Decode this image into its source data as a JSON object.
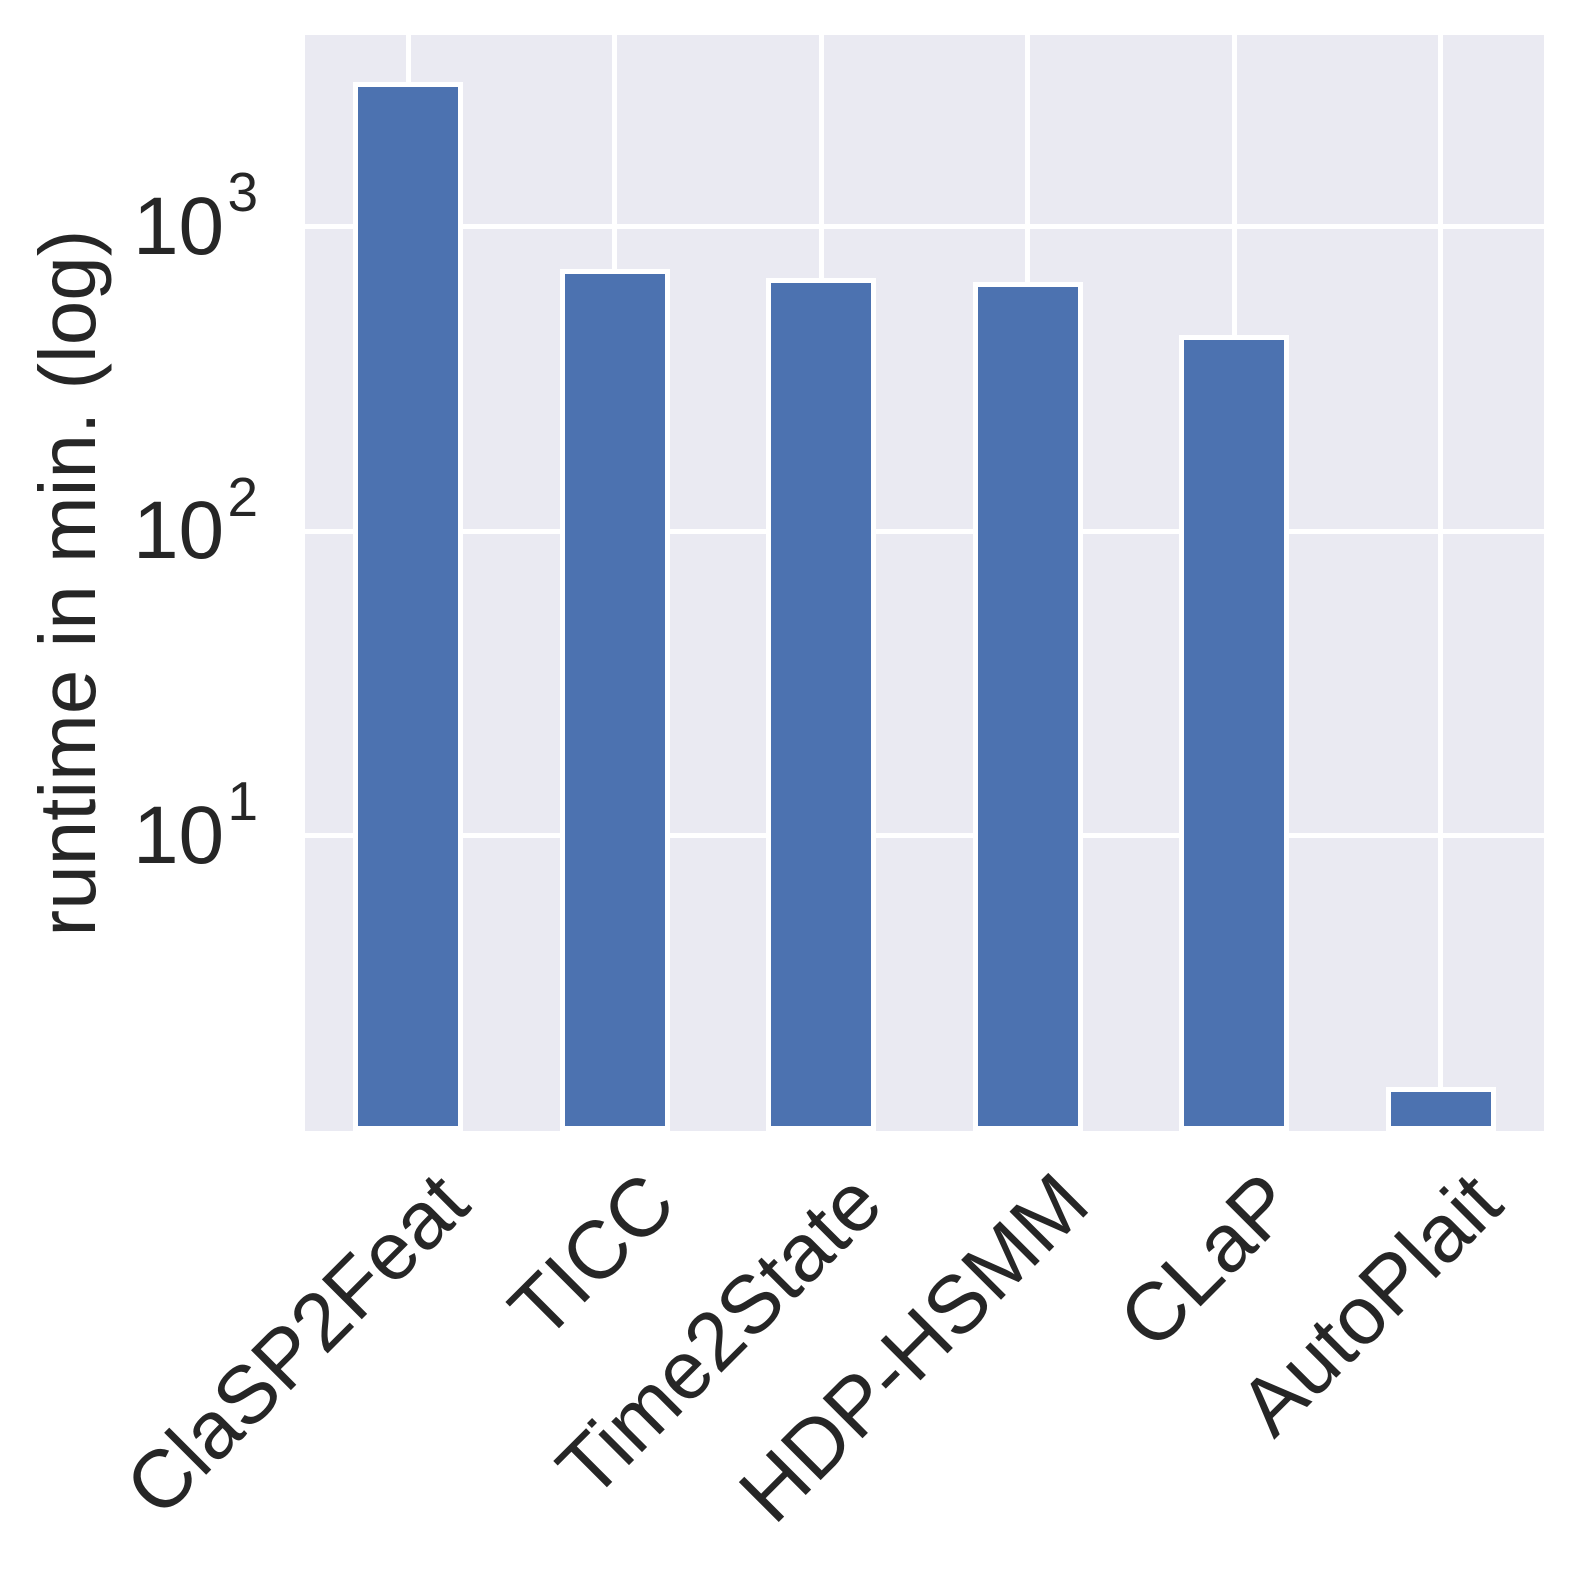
{
  "chart_data": {
    "type": "bar",
    "categories": [
      "ClaSP2Feat",
      "TICC",
      "Time2State",
      "HDP-HSMM",
      "CLaP",
      "AutoPlait"
    ],
    "values": [
      3000,
      725,
      680,
      660,
      440,
      1.5
    ],
    "title": "",
    "xlabel": "",
    "ylabel": "runtime in min. (log)",
    "yscale": "log",
    "ytick_exponents": [
      3,
      2,
      1
    ],
    "ytick_labels": [
      "10^3",
      "10^2",
      "10^1"
    ],
    "ylim_log10": [
      0.03,
      3.63
    ],
    "grid": true,
    "legend": false,
    "colors": {
      "bar_fill": "#4C72B0",
      "bar_edge": "#FFFFFF",
      "plot_background": "#EAEAF2",
      "gridline": "#FFFFFF",
      "text": "#262626",
      "figure_background": "#FFFFFF"
    }
  }
}
